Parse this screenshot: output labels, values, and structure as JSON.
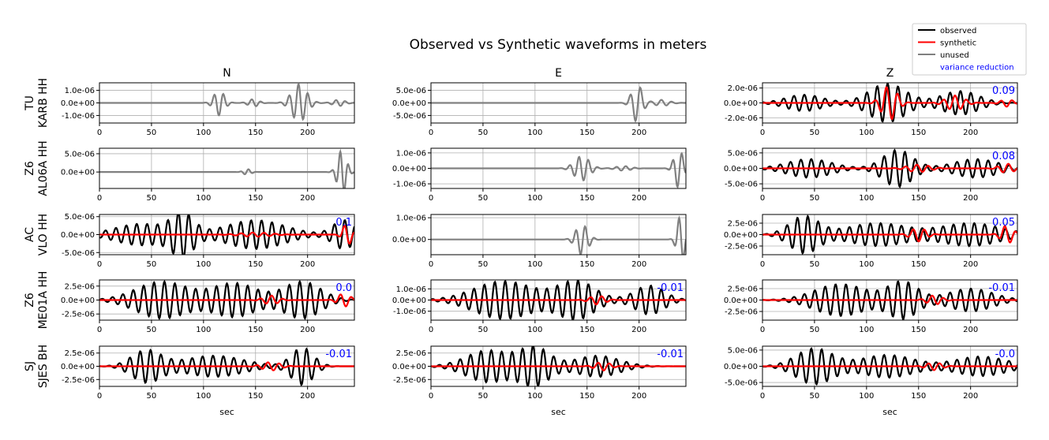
{
  "title": "Observed vs Synthetic waveforms in meters",
  "legend": {
    "placement": "top-right",
    "entries": [
      {
        "label": "observed",
        "color": "#000000"
      },
      {
        "label": "synthetic",
        "color": "#ff0000"
      },
      {
        "label": "unused",
        "color": "#808080"
      },
      {
        "label": "variance reduction",
        "color": "#0000ff"
      }
    ]
  },
  "columns": [
    "N",
    "E",
    "Z"
  ],
  "xlabel": "sec",
  "stations": [
    {
      "network": "TU",
      "label": "KARB HH"
    },
    {
      "network": "Z6",
      "label": "AL06A HH"
    },
    {
      "network": "AC",
      "label": "VLO HH"
    },
    {
      "network": "Z6",
      "label": "ME01A HH"
    },
    {
      "network": "SJ",
      "label": "SJES BH"
    }
  ],
  "chart_data": {
    "type": "line",
    "xlim": [
      0,
      245
    ],
    "xticks": [
      0,
      50,
      100,
      150,
      200
    ],
    "grid": true,
    "panels": [
      [
        {
          "status": "unused",
          "ylim": [
            -1.6e-06,
            1.6e-06
          ],
          "ytick_labels": [
            "1.0e-06",
            "0.0e+00",
            "-1.0e-06"
          ],
          "ytick_values": [
            1e-06,
            0,
            -1e-06
          ],
          "vr": null,
          "obs_env": [
            {
              "t": 115,
              "a": 1e-06,
              "w": 7
            },
            {
              "t": 148,
              "a": 3e-07,
              "w": 7
            },
            {
              "t": 192,
              "a": 1.5e-06,
              "w": 10
            },
            {
              "t": 230,
              "a": 2.5e-07,
              "w": 8
            }
          ],
          "obs_period": 9,
          "syn_env": []
        },
        {
          "status": "unused",
          "ylim": [
            -8e-06,
            8e-06
          ],
          "ytick_labels": [
            "5.0e-06",
            "0.0e+00",
            "-5.0e-06"
          ],
          "ytick_values": [
            5e-06,
            0,
            -5e-06
          ],
          "vr": null,
          "obs_env": [
            {
              "t": 198,
              "a": 7.5e-06,
              "w": 7
            },
            {
              "t": 222,
              "a": 1.2e-06,
              "w": 10
            }
          ],
          "obs_period": 10,
          "syn_env": []
        },
        {
          "status": "used",
          "ylim": [
            -2.7e-06,
            2.7e-06
          ],
          "ytick_labels": [
            "2.0e-06",
            "0.0e+00",
            "-2.0e-06"
          ],
          "ytick_values": [
            2e-06,
            0,
            -2e-06
          ],
          "vr": "0.09",
          "obs_env": [
            {
              "t": 40,
              "a": 1.1e-06,
              "w": 25
            },
            {
              "t": 120,
              "a": 2.6e-06,
              "w": 25
            },
            {
              "t": 190,
              "a": 1.6e-06,
              "w": 25
            }
          ],
          "obs_period": 10,
          "syn_env": [
            {
              "t": 122,
              "a": 2.3e-06,
              "w": 10
            },
            {
              "t": 185,
              "a": 1e-06,
              "w": 12
            },
            {
              "t": 235,
              "a": 5e-07,
              "w": 8
            }
          ]
        }
      ],
      [
        {
          "status": "unused",
          "ylim": [
            -4.5e-06,
            6.5e-06
          ],
          "ytick_labels": [
            "5.0e-06",
            "0.0e+00"
          ],
          "ytick_values": [
            5e-06,
            0
          ],
          "vr": null,
          "obs_env": [
            {
              "t": 142,
              "a": 8e-07,
              "w": 5
            },
            {
              "t": 233,
              "a": 6e-06,
              "w": 6
            }
          ],
          "obs_period": 8,
          "syn_env": []
        },
        {
          "status": "unused",
          "ylim": [
            -1.3e-06,
            1.3e-06
          ],
          "ytick_labels": [
            "1.0e-06",
            "0.0e+00",
            "-1.0e-06"
          ],
          "ytick_values": [
            1e-06,
            0,
            -1e-06
          ],
          "vr": null,
          "obs_env": [
            {
              "t": 145,
              "a": 8e-07,
              "w": 10
            },
            {
              "t": 185,
              "a": 1.5e-07,
              "w": 10
            },
            {
              "t": 238,
              "a": 1.25e-06,
              "w": 6
            }
          ],
          "obs_period": 9,
          "syn_env": []
        },
        {
          "status": "used",
          "ylim": [
            -6.5e-06,
            6.5e-06
          ],
          "ytick_labels": [
            "5.0e-06",
            "0.0e+00",
            "-5.0e-06"
          ],
          "ytick_values": [
            5e-06,
            0,
            -5e-06
          ],
          "vr": "0.08",
          "obs_env": [
            {
              "t": 45,
              "a": 3e-06,
              "w": 30
            },
            {
              "t": 130,
              "a": 6e-06,
              "w": 20
            },
            {
              "t": 205,
              "a": 3e-06,
              "w": 30
            }
          ],
          "obs_period": 10,
          "syn_env": [
            {
              "t": 150,
              "a": 1.2e-06,
              "w": 15
            },
            {
              "t": 235,
              "a": 1.5e-06,
              "w": 10
            }
          ]
        }
      ],
      [
        {
          "status": "used",
          "ylim": [
            -5.6e-06,
            5.6e-06
          ],
          "ytick_labels": [
            "5.0e-06",
            "0.0e+00",
            "-5.0e-06"
          ],
          "ytick_values": [
            5e-06,
            0,
            -5e-06
          ],
          "vr": "0.1",
          "obs_env": [
            {
              "t": 40,
              "a": 3e-06,
              "w": 35
            },
            {
              "t": 80,
              "a": 5.5e-06,
              "w": 15
            },
            {
              "t": 150,
              "a": 4e-06,
              "w": 40
            },
            {
              "t": 235,
              "a": 4e-06,
              "w": 15
            }
          ],
          "obs_period": 10,
          "syn_env": [
            {
              "t": 150,
              "a": 6e-07,
              "w": 20
            },
            {
              "t": 238,
              "a": 3e-06,
              "w": 6
            }
          ]
        },
        {
          "status": "unused",
          "ylim": [
            -7e-07,
            1.15e-06
          ],
          "ytick_labels": [
            "1.0e-06",
            "0.0e+00"
          ],
          "ytick_values": [
            1e-06,
            0
          ],
          "vr": null,
          "obs_env": [
            {
              "t": 145,
              "a": 7e-07,
              "w": 8
            },
            {
              "t": 240,
              "a": 1.1e-06,
              "w": 5
            }
          ],
          "obs_period": 9,
          "syn_env": []
        },
        {
          "status": "used",
          "ylim": [
            -4.4e-06,
            4.4e-06
          ],
          "ytick_labels": [
            "2.5e-06",
            "0.0e+00",
            "-2.5e-06"
          ],
          "ytick_values": [
            2.5e-06,
            0,
            -2.5e-06
          ],
          "vr": "0.05",
          "obs_env": [
            {
              "t": 40,
              "a": 4e-06,
              "w": 20
            },
            {
              "t": 110,
              "a": 2.5e-06,
              "w": 40
            },
            {
              "t": 200,
              "a": 2.5e-06,
              "w": 40
            }
          ],
          "obs_period": 10,
          "syn_env": [
            {
              "t": 150,
              "a": 1.5e-06,
              "w": 10
            },
            {
              "t": 235,
              "a": 2e-06,
              "w": 8
            }
          ]
        }
      ],
      [
        {
          "status": "used",
          "ylim": [
            -3.6e-06,
            3.6e-06
          ],
          "ytick_labels": [
            "2.5e-06",
            "0.0e+00",
            "-2.5e-06"
          ],
          "ytick_values": [
            2.5e-06,
            0,
            -2.5e-06
          ],
          "vr": "0.0",
          "obs_env": [
            {
              "t": 60,
              "a": 3.3e-06,
              "w": 35
            },
            {
              "t": 130,
              "a": 3e-06,
              "w": 30
            },
            {
              "t": 195,
              "a": 3.3e-06,
              "w": 25
            }
          ],
          "obs_period": 10,
          "syn_env": [
            {
              "t": 165,
              "a": 8e-07,
              "w": 10
            },
            {
              "t": 235,
              "a": 1.2e-06,
              "w": 8
            }
          ]
        },
        {
          "status": "used",
          "ylim": [
            -1.8e-06,
            1.8e-06
          ],
          "ytick_labels": [
            "1.0e-06",
            "0.0e+00",
            "-1.0e-06"
          ],
          "ytick_values": [
            1e-06,
            0,
            -1e-06
          ],
          "vr": "-0.01",
          "obs_env": [
            {
              "t": 70,
              "a": 1.7e-06,
              "w": 40
            },
            {
              "t": 140,
              "a": 1.7e-06,
              "w": 25
            },
            {
              "t": 210,
              "a": 1.3e-06,
              "w": 20
            }
          ],
          "obs_period": 10,
          "syn_env": [
            {
              "t": 160,
              "a": 4e-07,
              "w": 10
            }
          ]
        },
        {
          "status": "used",
          "ylim": [
            -4.4e-06,
            4.4e-06
          ],
          "ytick_labels": [
            "2.5e-06",
            "0.0e+00",
            "-2.5e-06"
          ],
          "ytick_values": [
            2.5e-06,
            0,
            -2.5e-06
          ],
          "vr": "-0.01",
          "obs_env": [
            {
              "t": 75,
              "a": 3.5e-06,
              "w": 35
            },
            {
              "t": 135,
              "a": 4e-06,
              "w": 20
            },
            {
              "t": 200,
              "a": 2.5e-06,
              "w": 30
            }
          ],
          "obs_period": 10,
          "syn_env": [
            {
              "t": 165,
              "a": 1e-06,
              "w": 10
            }
          ]
        }
      ],
      [
        {
          "status": "used",
          "ylim": [
            -3.8e-06,
            3.8e-06
          ],
          "ytick_labels": [
            "2.5e-06",
            "0.0e+00",
            "-2.5e-06"
          ],
          "ytick_values": [
            2.5e-06,
            0,
            -2.5e-06
          ],
          "vr": "-0.01",
          "obs_env": [
            {
              "t": 45,
              "a": 3e-06,
              "w": 20
            },
            {
              "t": 110,
              "a": 2e-06,
              "w": 40
            },
            {
              "t": 195,
              "a": 3.5e-06,
              "w": 15
            }
          ],
          "obs_period": 10,
          "syn_env": [
            {
              "t": 165,
              "a": 8e-07,
              "w": 12
            }
          ]
        },
        {
          "status": "used",
          "ylim": [
            -3.8e-06,
            3.8e-06
          ],
          "ytick_labels": [
            "2.5e-06",
            "0.0e+00",
            "-2.5e-06"
          ],
          "ytick_values": [
            2.5e-06,
            0,
            -2.5e-06
          ],
          "vr": "-0.01",
          "obs_env": [
            {
              "t": 55,
              "a": 3e-06,
              "w": 30
            },
            {
              "t": 100,
              "a": 3.5e-06,
              "w": 20
            },
            {
              "t": 160,
              "a": 2e-06,
              "w": 30
            }
          ],
          "obs_period": 10,
          "syn_env": [
            {
              "t": 165,
              "a": 8e-07,
              "w": 10
            }
          ]
        },
        {
          "status": "used",
          "ylim": [
            -6.2e-06,
            6.2e-06
          ],
          "ytick_labels": [
            "5.0e-06",
            "0.0e+00",
            "-5.0e-06"
          ],
          "ytick_values": [
            5e-06,
            0,
            -5e-06
          ],
          "vr": "-0.0",
          "obs_env": [
            {
              "t": 50,
              "a": 5.5e-06,
              "w": 25
            },
            {
              "t": 120,
              "a": 3.5e-06,
              "w": 35
            },
            {
              "t": 210,
              "a": 3e-06,
              "w": 35
            }
          ],
          "obs_period": 10,
          "syn_env": [
            {
              "t": 165,
              "a": 1.2e-06,
              "w": 10
            }
          ]
        }
      ]
    ]
  }
}
